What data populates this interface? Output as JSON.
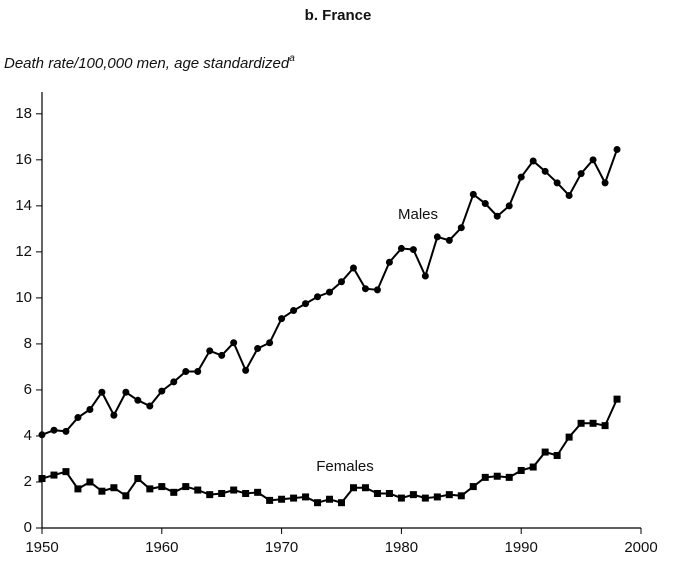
{
  "chart_data": {
    "type": "line",
    "title": "b. France",
    "y_label": "Death rate/100,000 men, age standardized",
    "y_label_note": "a",
    "x": [
      1950,
      1951,
      1952,
      1953,
      1954,
      1955,
      1956,
      1957,
      1958,
      1959,
      1960,
      1961,
      1962,
      1963,
      1964,
      1965,
      1966,
      1967,
      1968,
      1969,
      1970,
      1971,
      1972,
      1973,
      1974,
      1975,
      1976,
      1977,
      1978,
      1979,
      1980,
      1981,
      1982,
      1983,
      1984,
      1985,
      1986,
      1987,
      1988,
      1989,
      1990,
      1991,
      1992,
      1993,
      1994,
      1995,
      1996,
      1997,
      1998
    ],
    "series": [
      {
        "name": "Males",
        "color": "#000000",
        "marker": "circle",
        "values": [
          4.05,
          4.25,
          4.2,
          4.8,
          5.15,
          5.9,
          4.9,
          5.9,
          5.55,
          5.3,
          5.95,
          6.35,
          6.8,
          6.8,
          7.7,
          7.5,
          8.05,
          6.85,
          7.8,
          8.05,
          9.1,
          9.45,
          9.75,
          10.05,
          10.25,
          10.7,
          11.3,
          10.4,
          10.35,
          11.55,
          12.15,
          12.1,
          10.95,
          12.65,
          12.5,
          13.05,
          14.5,
          14.1,
          13.55,
          14.0,
          15.25,
          15.95,
          15.5,
          15.0,
          14.45,
          15.4,
          16.0,
          15.0,
          16.45
        ]
      },
      {
        "name": "Females",
        "color": "#000000",
        "marker": "square",
        "values": [
          2.15,
          2.3,
          2.45,
          1.7,
          2.0,
          1.6,
          1.75,
          1.4,
          2.15,
          1.7,
          1.8,
          1.55,
          1.8,
          1.65,
          1.45,
          1.5,
          1.65,
          1.5,
          1.55,
          1.2,
          1.25,
          1.3,
          1.35,
          1.1,
          1.25,
          1.1,
          1.75,
          1.75,
          1.5,
          1.5,
          1.3,
          1.45,
          1.3,
          1.35,
          1.45,
          1.4,
          1.8,
          2.2,
          2.25,
          2.2,
          2.5,
          2.65,
          3.3,
          3.15,
          3.95,
          4.55,
          4.55,
          4.45,
          5.6
        ]
      }
    ],
    "xlim": [
      1950,
      2000
    ],
    "xticks": [
      1950,
      1960,
      1970,
      1980,
      1990,
      2000
    ],
    "ylim": [
      0,
      18.6
    ],
    "yticks": [
      0,
      2,
      4,
      6,
      8,
      10,
      12,
      14,
      16,
      18
    ],
    "grid": false
  }
}
